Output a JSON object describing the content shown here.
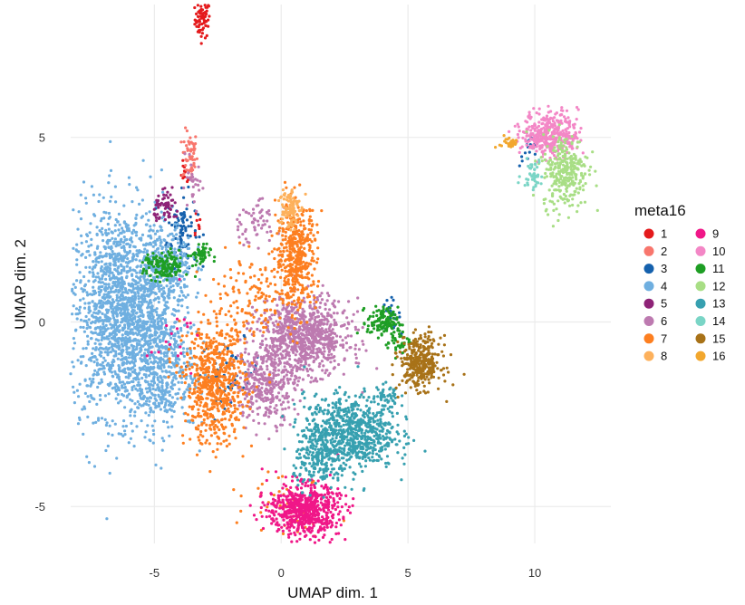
{
  "chart_data": {
    "type": "scatter",
    "title": "",
    "xlabel": "UMAP dim. 1",
    "ylabel": "UMAP dim. 2",
    "xlim": [
      -8.3,
      13.0
    ],
    "ylim": [
      -6.0,
      8.6
    ],
    "x_ticks": [
      -5,
      0,
      5,
      10
    ],
    "y_ticks": [
      -5,
      0,
      5
    ],
    "x_tick_labels": [
      "-5",
      "0",
      "5",
      "10"
    ],
    "y_tick_labels": [
      "-5",
      "0",
      "5"
    ],
    "grid": true,
    "legend": {
      "title": "meta16",
      "position": "right",
      "columns": 2
    },
    "series": [
      {
        "name": "1",
        "color": "#E41A1C",
        "clusters": [
          {
            "cx": -3.1,
            "cy": 8.2,
            "sx": 0.15,
            "sy": 0.25,
            "n": 70
          },
          {
            "cx": -3.8,
            "cy": 4.0,
            "sx": 0.12,
            "sy": 0.15,
            "n": 12
          },
          {
            "cx": -3.35,
            "cy": 2.6,
            "sx": 0.1,
            "sy": 0.2,
            "n": 8
          }
        ]
      },
      {
        "name": "2",
        "color": "#F8766D",
        "clusters": [
          {
            "cx": -3.6,
            "cy": 4.5,
            "sx": 0.15,
            "sy": 0.35,
            "n": 55
          }
        ]
      },
      {
        "name": "3",
        "color": "#1561AD",
        "clusters": [
          {
            "cx": -3.9,
            "cy": 2.5,
            "sx": 0.3,
            "sy": 0.5,
            "n": 90
          },
          {
            "cx": -2.0,
            "cy": -1.3,
            "sx": 0.6,
            "sy": 0.4,
            "n": 60
          },
          {
            "cx": 4.3,
            "cy": 0.2,
            "sx": 0.2,
            "sy": 0.2,
            "n": 25
          },
          {
            "cx": 9.8,
            "cy": 4.6,
            "sx": 0.2,
            "sy": 0.2,
            "n": 20
          }
        ]
      },
      {
        "name": "4",
        "color": "#6FAFE0",
        "clusters": [
          {
            "cx": -6.3,
            "cy": 0.3,
            "sx": 1.0,
            "sy": 1.4,
            "n": 1700
          },
          {
            "cx": -4.8,
            "cy": -1.2,
            "sx": 0.7,
            "sy": 0.9,
            "n": 500
          },
          {
            "cx": -4.5,
            "cy": 1.5,
            "sx": 0.5,
            "sy": 0.6,
            "n": 250
          }
        ]
      },
      {
        "name": "5",
        "color": "#8E2377",
        "clusters": [
          {
            "cx": -4.5,
            "cy": 3.1,
            "sx": 0.25,
            "sy": 0.2,
            "n": 60
          }
        ]
      },
      {
        "name": "6",
        "color": "#BD7AB0",
        "clusters": [
          {
            "cx": 0.9,
            "cy": -0.4,
            "sx": 0.9,
            "sy": 0.5,
            "n": 850
          },
          {
            "cx": -0.6,
            "cy": -1.7,
            "sx": 0.6,
            "sy": 0.5,
            "n": 350
          },
          {
            "cx": -1.1,
            "cy": 2.7,
            "sx": 0.5,
            "sy": 0.3,
            "n": 60
          },
          {
            "cx": -3.5,
            "cy": 3.7,
            "sx": 0.2,
            "sy": 0.3,
            "n": 30
          }
        ]
      },
      {
        "name": "7",
        "color": "#FD7F20",
        "clusters": [
          {
            "cx": 0.6,
            "cy": 1.8,
            "sx": 0.4,
            "sy": 0.7,
            "n": 450
          },
          {
            "cx": -2.6,
            "cy": -1.7,
            "sx": 0.6,
            "sy": 0.8,
            "n": 650
          },
          {
            "cx": -1.2,
            "cy": 0.6,
            "sx": 0.9,
            "sy": 0.6,
            "n": 140
          },
          {
            "cx": 0.3,
            "cy": -4.8,
            "sx": 0.8,
            "sy": 0.5,
            "n": 40
          }
        ]
      },
      {
        "name": "8",
        "color": "#FDB15C",
        "clusters": [
          {
            "cx": 0.3,
            "cy": 3.1,
            "sx": 0.2,
            "sy": 0.3,
            "n": 100
          }
        ]
      },
      {
        "name": "9",
        "color": "#F01788",
        "clusters": [
          {
            "cx": 0.9,
            "cy": -5.1,
            "sx": 0.7,
            "sy": 0.35,
            "n": 650
          },
          {
            "cx": -4.2,
            "cy": -0.3,
            "sx": 0.5,
            "sy": 0.6,
            "n": 20
          }
        ]
      },
      {
        "name": "10",
        "color": "#F387C6",
        "clusters": [
          {
            "cx": 10.6,
            "cy": 5.1,
            "sx": 0.55,
            "sy": 0.3,
            "n": 380
          }
        ]
      },
      {
        "name": "11",
        "color": "#1E9E24",
        "clusters": [
          {
            "cx": -4.6,
            "cy": 1.5,
            "sx": 0.4,
            "sy": 0.2,
            "n": 140
          },
          {
            "cx": -3.2,
            "cy": 1.8,
            "sx": 0.2,
            "sy": 0.15,
            "n": 50
          },
          {
            "cx": 4.0,
            "cy": 0.0,
            "sx": 0.3,
            "sy": 0.2,
            "n": 120
          },
          {
            "cx": 4.6,
            "cy": -0.5,
            "sx": 0.25,
            "sy": 0.2,
            "n": 40
          }
        ]
      },
      {
        "name": "12",
        "color": "#A8DE85",
        "clusters": [
          {
            "cx": 11.2,
            "cy": 4.1,
            "sx": 0.45,
            "sy": 0.5,
            "n": 300
          }
        ]
      },
      {
        "name": "13",
        "color": "#37A0B0",
        "clusters": [
          {
            "cx": 2.7,
            "cy": -3.0,
            "sx": 0.9,
            "sy": 0.5,
            "n": 750
          },
          {
            "cx": 1.5,
            "cy": -3.8,
            "sx": 0.5,
            "sy": 0.35,
            "n": 160
          },
          {
            "cx": 4.2,
            "cy": -2.1,
            "sx": 0.25,
            "sy": 0.25,
            "n": 50
          }
        ]
      },
      {
        "name": "14",
        "color": "#7AD5C6",
        "clusters": [
          {
            "cx": 9.9,
            "cy": 4.0,
            "sx": 0.2,
            "sy": 0.2,
            "n": 45
          }
        ]
      },
      {
        "name": "15",
        "color": "#A87218",
        "clusters": [
          {
            "cx": 5.5,
            "cy": -1.1,
            "sx": 0.4,
            "sy": 0.35,
            "n": 350
          }
        ]
      },
      {
        "name": "16",
        "color": "#F2A72E",
        "clusters": [
          {
            "cx": 9.0,
            "cy": 4.85,
            "sx": 0.2,
            "sy": 0.1,
            "n": 35
          }
        ]
      }
    ]
  }
}
